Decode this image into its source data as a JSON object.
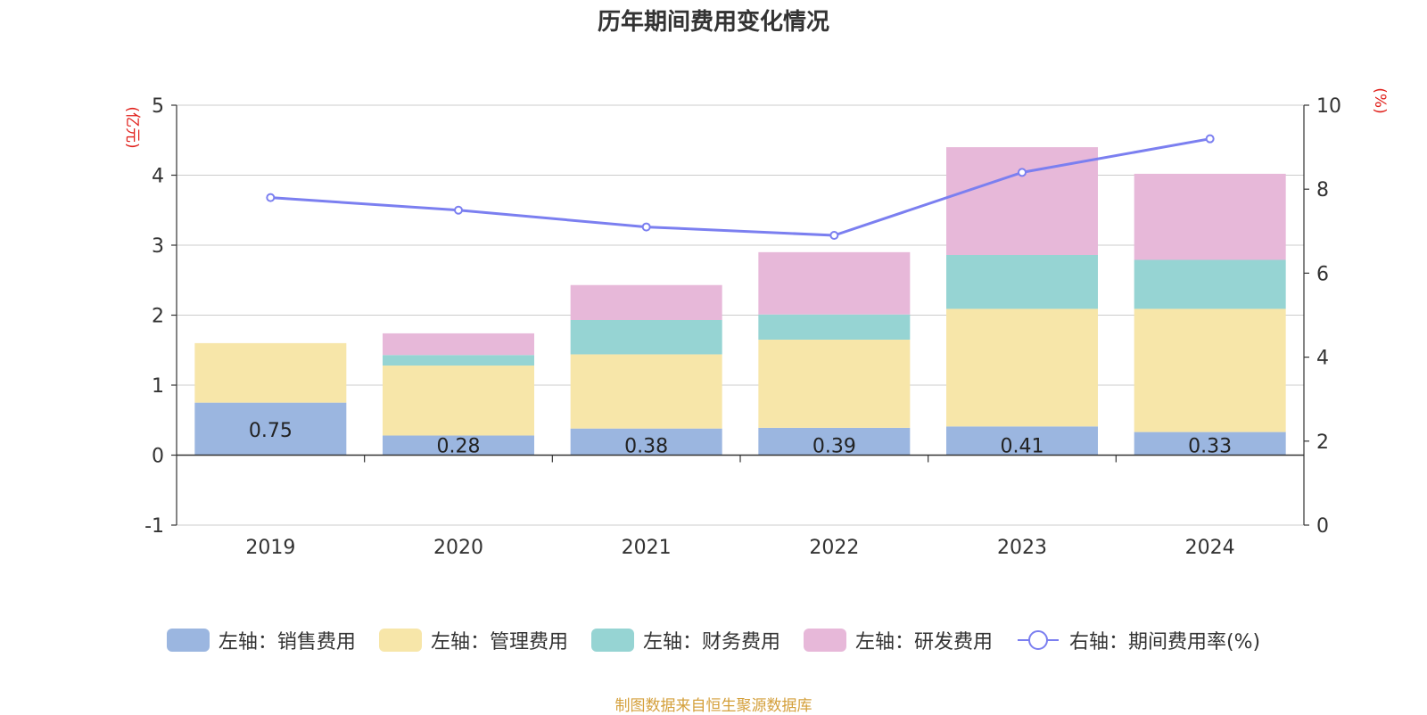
{
  "chart_data": {
    "type": "bar",
    "title": "历年期间费用变化情况",
    "categories": [
      "2019",
      "2020",
      "2021",
      "2022",
      "2023",
      "2024"
    ],
    "left_axis": {
      "unit_label": "(亿元)",
      "ylim": [
        -1,
        5
      ],
      "ticks": [
        "5",
        "4",
        "3",
        "2",
        "1",
        "0",
        "-1"
      ]
    },
    "right_axis": {
      "unit_label": "(%)",
      "ylim": [
        0,
        10
      ],
      "ticks": [
        "10",
        "8",
        "6",
        "4",
        "2",
        "0"
      ]
    },
    "series": [
      {
        "name": "左轴：销售费用",
        "type": "bar",
        "stacked": true,
        "color": "#9bb6e0",
        "values": [
          0.75,
          0.28,
          0.38,
          0.39,
          0.41,
          0.33
        ],
        "data_labels": [
          "0.75",
          "0.28",
          "0.38",
          "0.39",
          "0.41",
          "0.33"
        ]
      },
      {
        "name": "左轴：管理费用",
        "type": "bar",
        "stacked": true,
        "color": "#f7e6a9",
        "values": [
          0.85,
          1.0,
          1.06,
          1.26,
          1.68,
          1.76
        ]
      },
      {
        "name": "左轴：财务费用",
        "type": "bar",
        "stacked": true,
        "color": "#96d4d3",
        "values": [
          0.0,
          0.15,
          0.49,
          0.36,
          0.77,
          0.7
        ]
      },
      {
        "name": "左轴：研发费用",
        "type": "bar",
        "stacked": true,
        "color": "#e7b8d9",
        "values": [
          0.0,
          0.31,
          0.5,
          0.89,
          1.54,
          1.23
        ]
      },
      {
        "name": "右轴：期间费用率(%)",
        "type": "line",
        "axis": "right",
        "color": "#7b7ff0",
        "values": [
          7.8,
          7.5,
          7.1,
          6.9,
          8.4,
          9.2
        ]
      }
    ],
    "grid": true,
    "legend_position": "bottom"
  },
  "source_note": "制图数据来自恒生聚源数据库"
}
